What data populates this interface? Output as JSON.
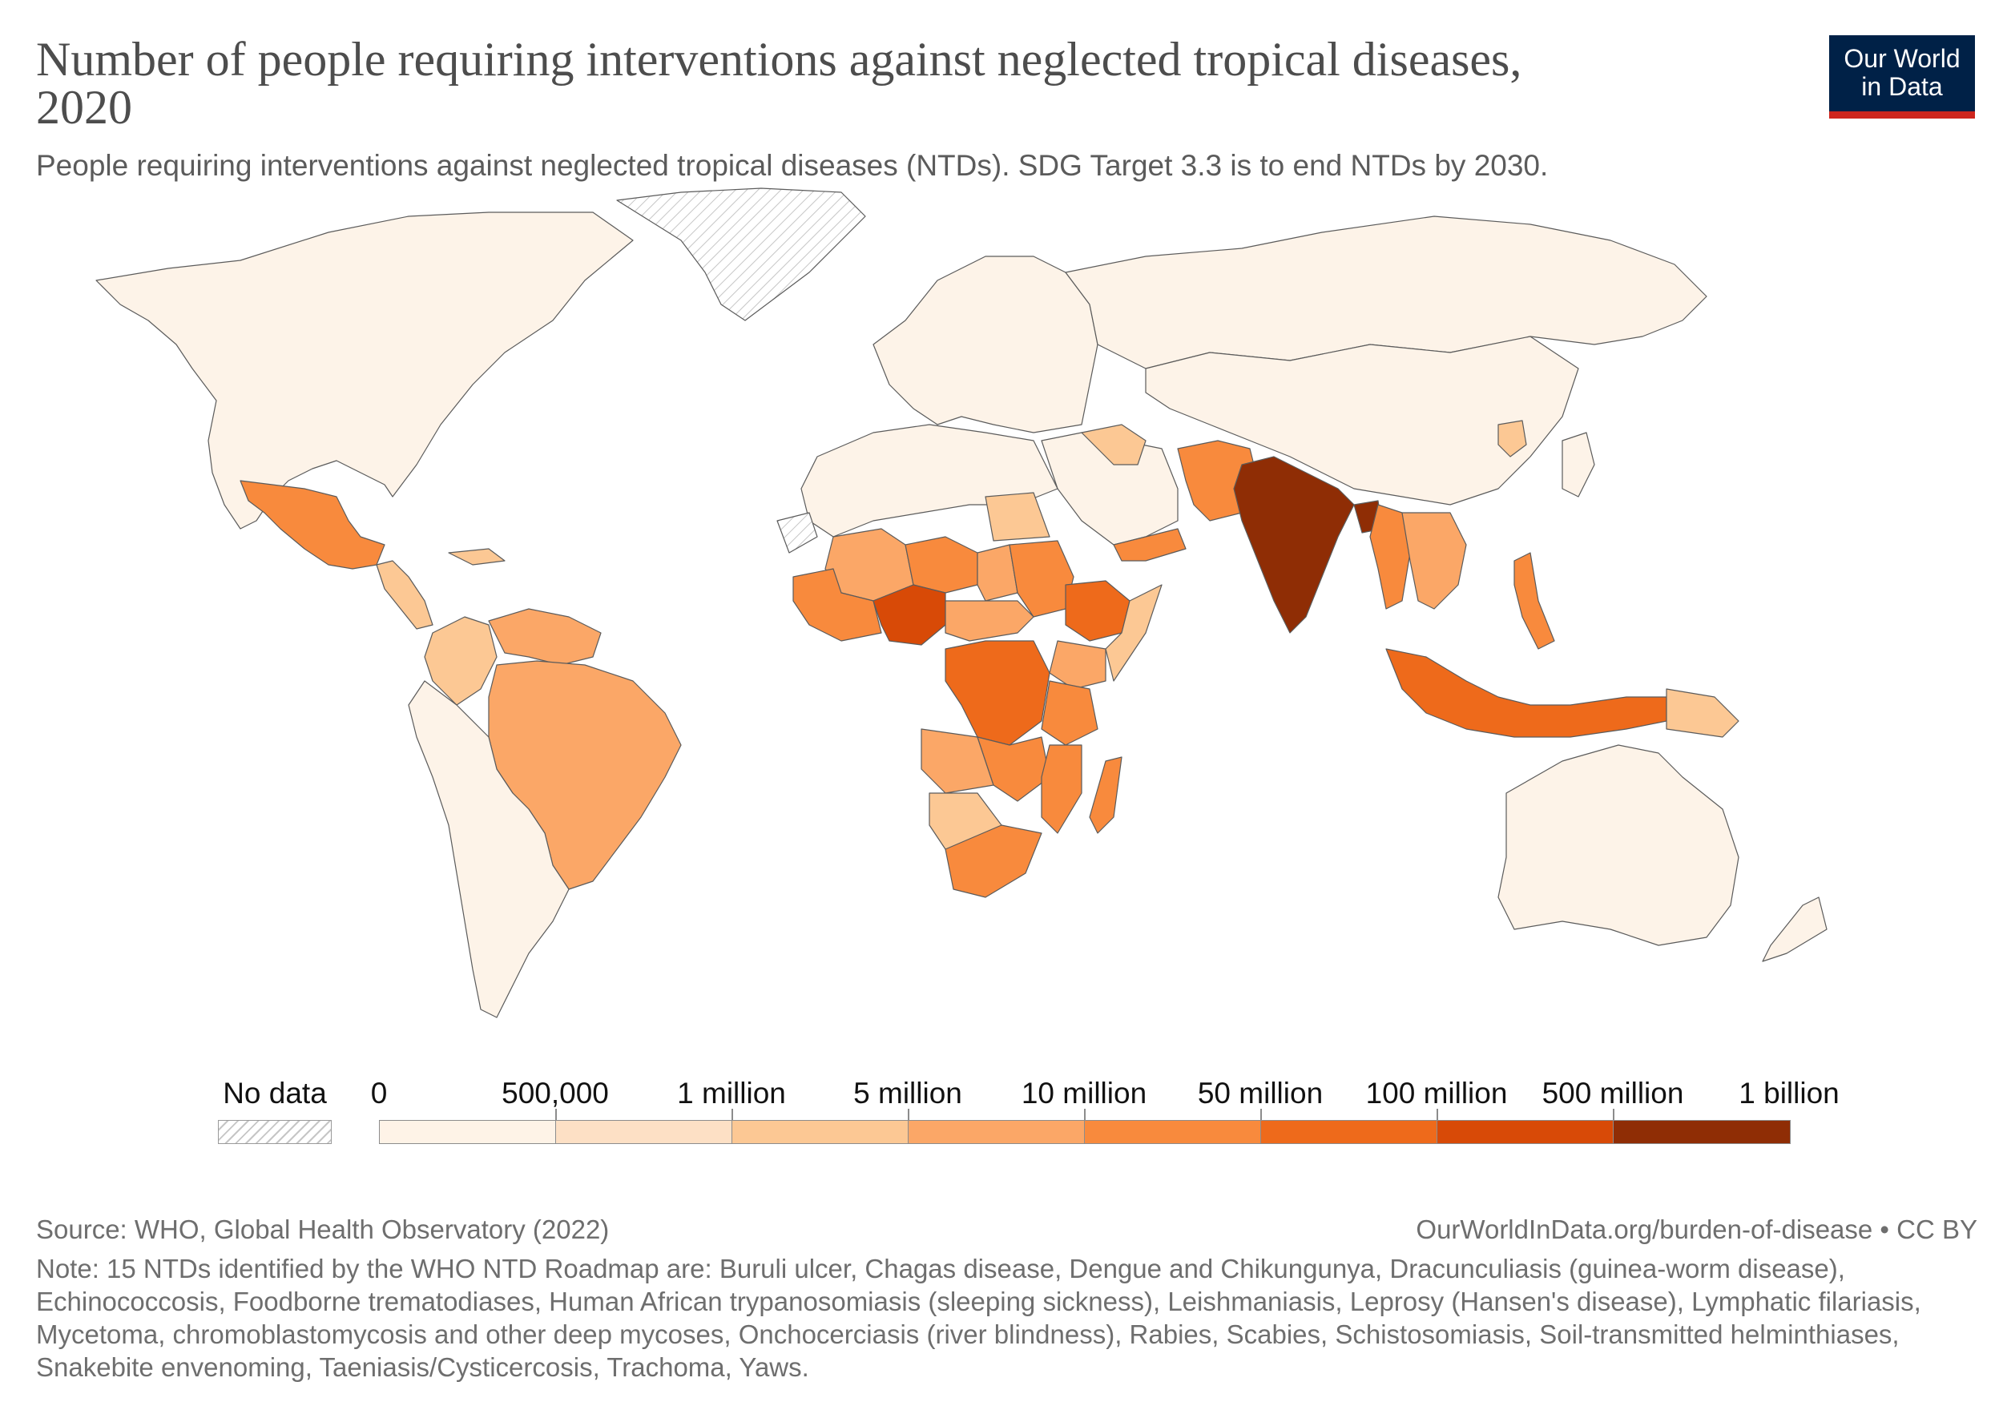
{
  "header": {
    "title": "Number of people requiring interventions against neglected tropical diseases, 2020",
    "subtitle": "People requiring interventions against neglected tropical diseases (NTDs). SDG Target 3.3 is to end NTDs by 2030.",
    "logo_line1": "Our World",
    "logo_line2": "in Data"
  },
  "legend": {
    "nodata_label": "No data",
    "bins": [
      {
        "label": "0",
        "color": "#fef3e7"
      },
      {
        "label": "500,000",
        "color": "#fde0c5"
      },
      {
        "label": "1 million",
        "color": "#fcc894"
      },
      {
        "label": "5 million",
        "color": "#fba767"
      },
      {
        "label": "10 million",
        "color": "#f88a3d"
      },
      {
        "label": "50 million",
        "color": "#ee6a1b"
      },
      {
        "label": "100 million",
        "color": "#d84a07"
      },
      {
        "label": "500 million",
        "color": "#8f2d05"
      },
      {
        "label": "1 billion",
        "color": ""
      }
    ]
  },
  "map_data": {
    "colors": {
      "land": "#fdf3e8",
      "border": "#5b5b5b",
      "nodata": "#ffffff"
    },
    "regions": [
      {
        "name": "India",
        "bin": "500 million – 1 billion",
        "color": "#8f2d05"
      },
      {
        "name": "Bangladesh",
        "bin": "500 million – 1 billion",
        "color": "#8f2d05"
      },
      {
        "name": "Nigeria",
        "bin": "100 million – 500 million",
        "color": "#d84a07"
      },
      {
        "name": "DR Congo",
        "bin": "50 million – 100 million",
        "color": "#ee6a1b"
      },
      {
        "name": "Ethiopia",
        "bin": "50 million – 100 million",
        "color": "#ee6a1b"
      },
      {
        "name": "Indonesia",
        "bin": "50 million – 100 million",
        "color": "#ee6a1b"
      },
      {
        "name": "Pakistan",
        "bin": "10 million – 50 million",
        "color": "#f88a3d"
      },
      {
        "name": "Myanmar",
        "bin": "10 million – 50 million",
        "color": "#f88a3d"
      },
      {
        "name": "Philippines",
        "bin": "10 million – 50 million",
        "color": "#f88a3d"
      },
      {
        "name": "Mexico",
        "bin": "10 million – 50 million",
        "color": "#f88a3d"
      },
      {
        "name": "Sudan",
        "bin": "10 million – 50 million",
        "color": "#f88a3d"
      },
      {
        "name": "Niger",
        "bin": "10 million – 50 million",
        "color": "#f88a3d"
      },
      {
        "name": "Tanzania",
        "bin": "10 million – 50 million",
        "color": "#f88a3d"
      },
      {
        "name": "Mozambique",
        "bin": "10 million – 50 million",
        "color": "#f88a3d"
      },
      {
        "name": "Madagascar",
        "bin": "10 million – 50 million",
        "color": "#f88a3d"
      },
      {
        "name": "South Africa",
        "bin": "10 million – 50 million",
        "color": "#f88a3d"
      },
      {
        "name": "Yemen",
        "bin": "10 million – 50 million",
        "color": "#f88a3d"
      },
      {
        "name": "Brazil",
        "bin": "5 million – 10 million",
        "color": "#fba767"
      },
      {
        "name": "Venezuela",
        "bin": "5 million – 10 million",
        "color": "#fba767"
      },
      {
        "name": "Angola",
        "bin": "5 million – 10 million",
        "color": "#fba767"
      },
      {
        "name": "Mali",
        "bin": "5 million – 10 million",
        "color": "#fba767"
      },
      {
        "name": "Chad",
        "bin": "5 million – 10 million",
        "color": "#fba767"
      },
      {
        "name": "Kenya",
        "bin": "5 million – 10 million",
        "color": "#fba767"
      },
      {
        "name": "Vietnam",
        "bin": "5 million – 10 million",
        "color": "#fba767"
      },
      {
        "name": "Egypt",
        "bin": "1 million – 5 million",
        "color": "#fcc894"
      },
      {
        "name": "Colombia",
        "bin": "1 million – 5 million",
        "color": "#fcc894"
      },
      {
        "name": "Namibia",
        "bin": "1 million – 5 million",
        "color": "#fcc894"
      },
      {
        "name": "Papua New Guinea",
        "bin": "1 million – 5 million",
        "color": "#fcc894"
      },
      {
        "name": "Greenland",
        "bin": "No data",
        "color": "#ffffff"
      },
      {
        "name": "Western Sahara",
        "bin": "No data",
        "color": "#ffffff"
      }
    ]
  },
  "footer": {
    "source": "Source: WHO, Global Health Observatory (2022)",
    "url": "OurWorldInData.org/burden-of-disease • CC BY",
    "note": "Note: 15 NTDs identified by the WHO NTD Roadmap are: Buruli ulcer, Chagas disease, Dengue and Chikungunya, Dracunculiasis (guinea-worm disease), Echinococcosis, Foodborne trematodiases, Human African trypanosomiasis (sleeping sickness), Leishmaniasis, Leprosy (Hansen's disease), Lymphatic filariasis, Mycetoma, chromoblastomycosis and other deep mycoses, Onchocerciasis (river blindness), Rabies, Scabies, Schistosomiasis, Soil-transmitted helminthiases, Snakebite envenoming, Taeniasis/Cysticercosis, Trachoma, Yaws."
  }
}
